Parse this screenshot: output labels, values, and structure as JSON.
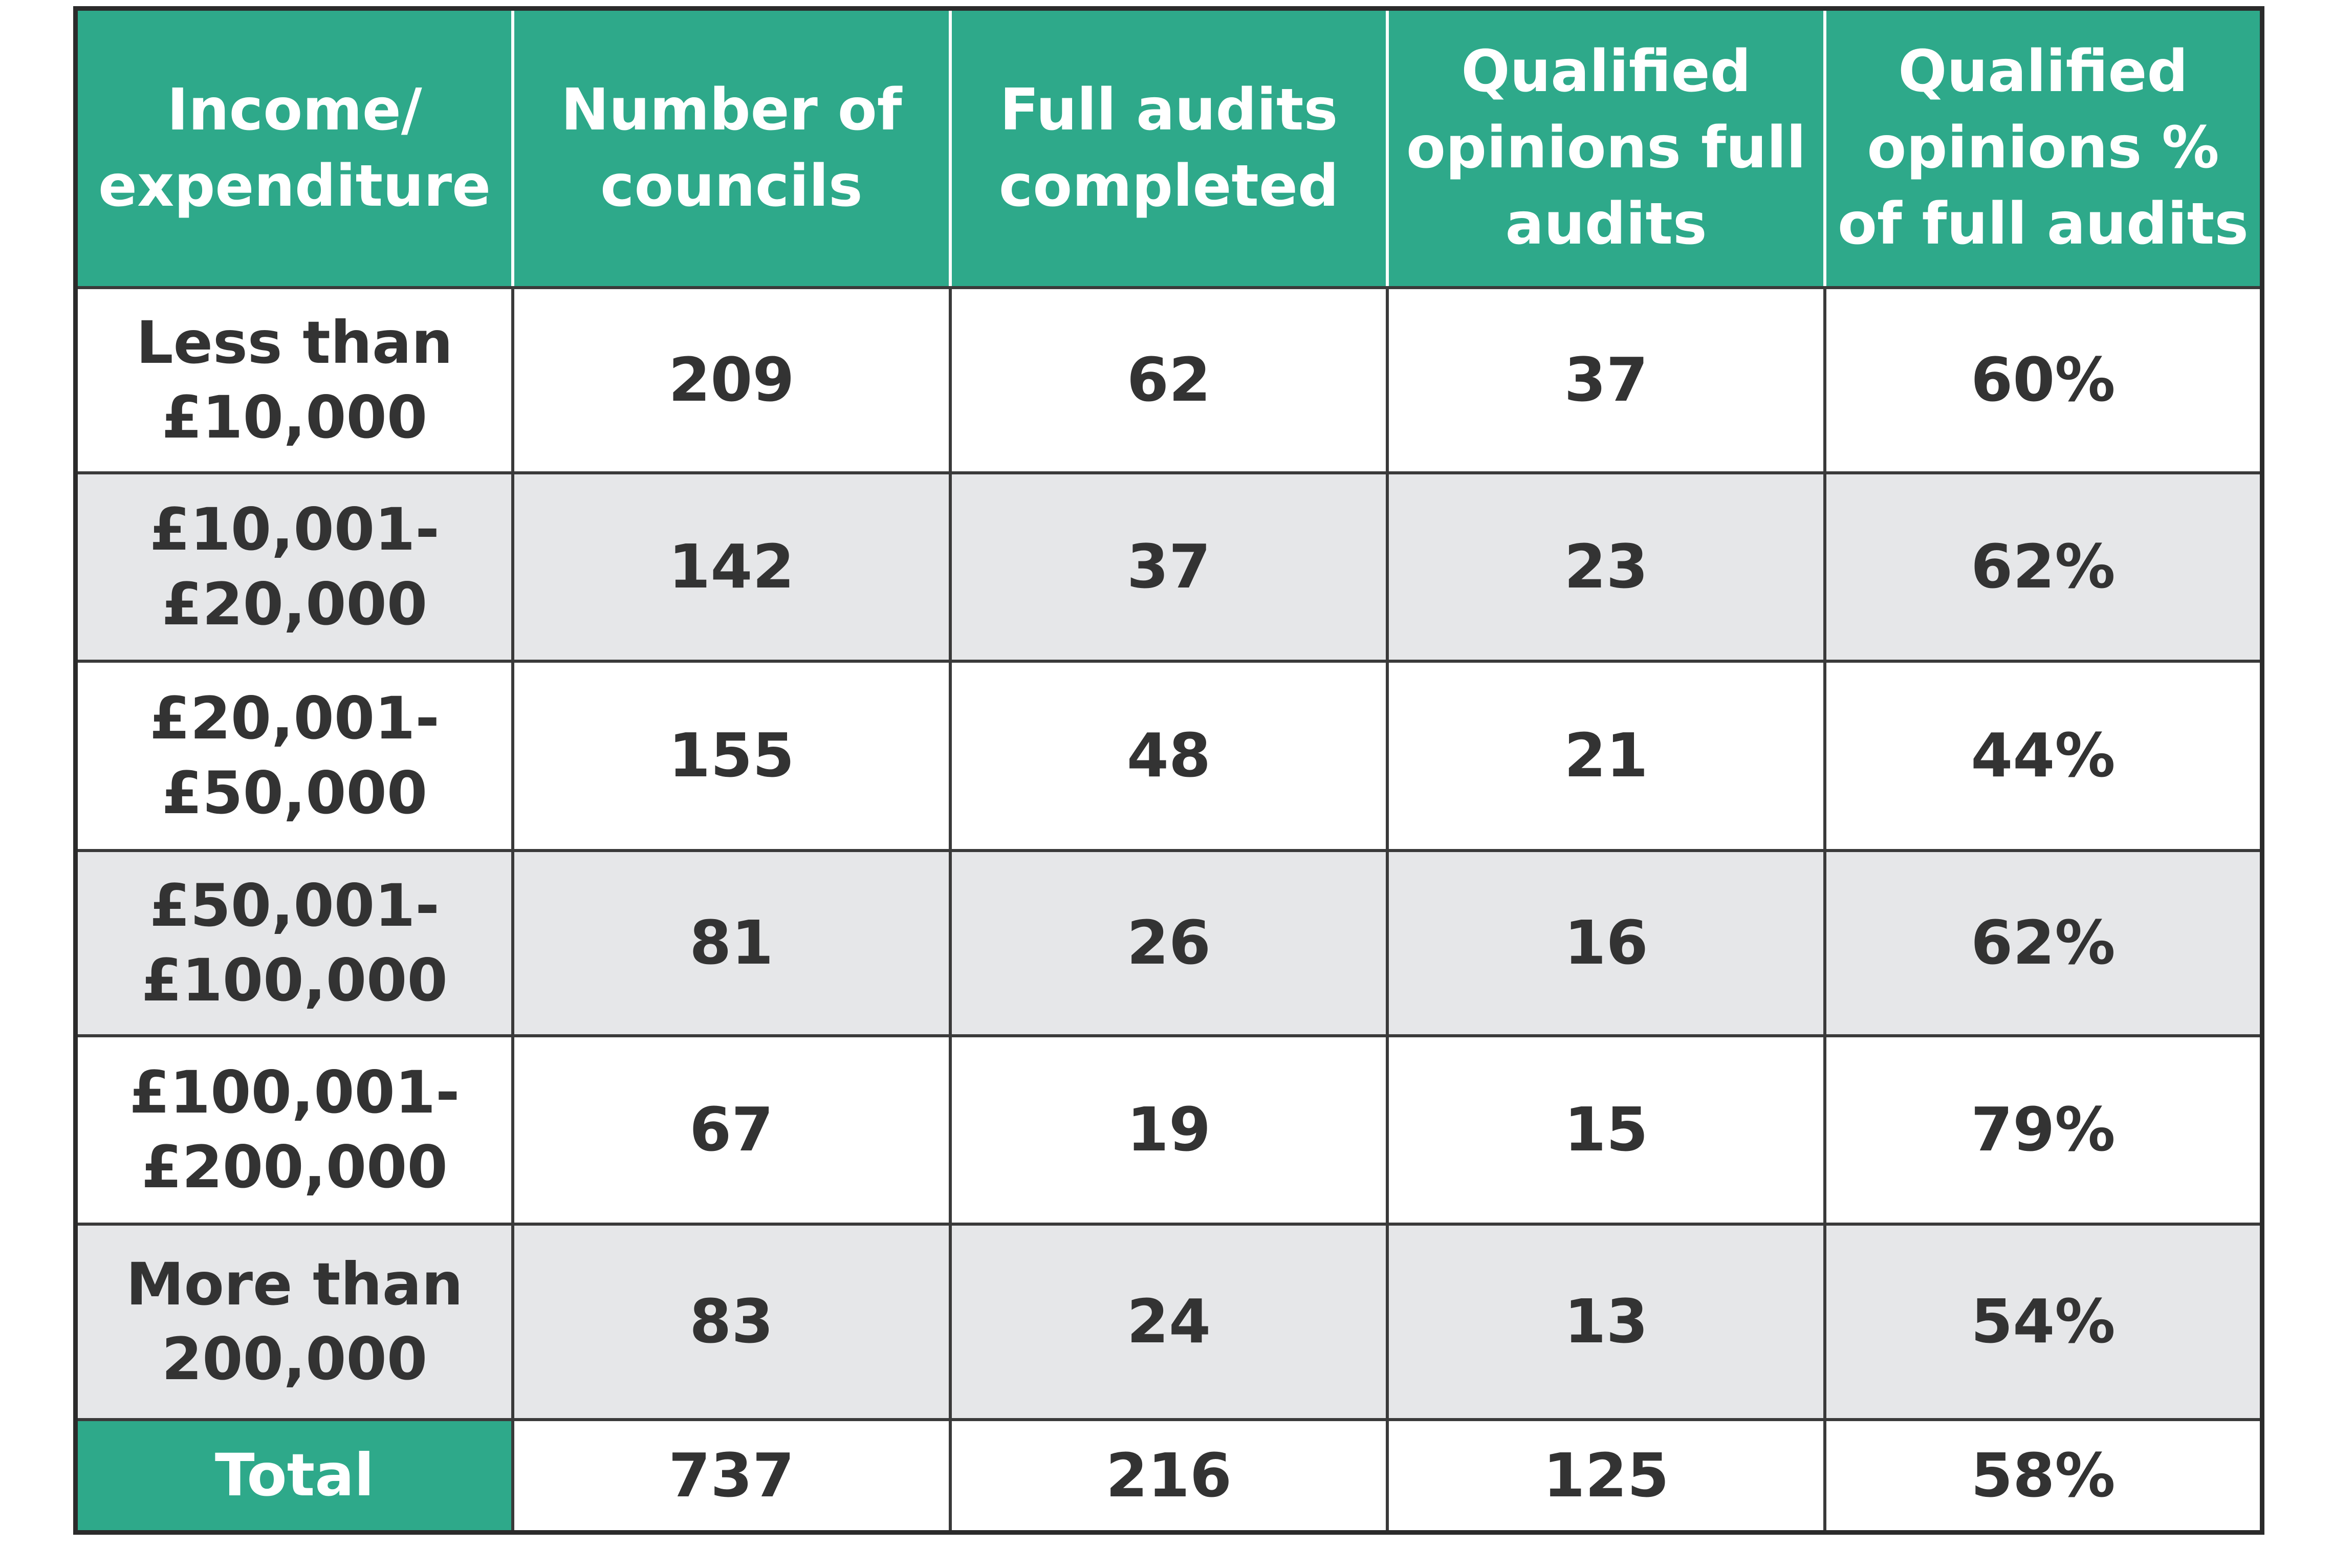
{
  "table": {
    "headers": [
      "Income/ expenditure",
      "Number of councils",
      "Full audits completed",
      "Qualified opinions full audits",
      "Qualified opinions % of full audits"
    ],
    "rows": [
      [
        "Less than £10,000",
        "209",
        "62",
        "37",
        "60%"
      ],
      [
        "£10,001- £20,000",
        "142",
        "37",
        "23",
        "62%"
      ],
      [
        "£20,001- £50,000",
        "155",
        "48",
        "21",
        "44%"
      ],
      [
        "£50,001- £100,000",
        "81",
        "26",
        "16",
        "62%"
      ],
      [
        "£100,001- £200,000",
        "67",
        "19",
        "15",
        "79%"
      ],
      [
        "More than 200,000",
        "83",
        "24",
        "13",
        "54%"
      ]
    ],
    "total": [
      "Total",
      "737",
      "216",
      "125",
      "58%"
    ]
  },
  "colors": {
    "header_bg": "#2ea98a",
    "alt_row_bg": "#e6e7e9",
    "text": "#333333"
  }
}
